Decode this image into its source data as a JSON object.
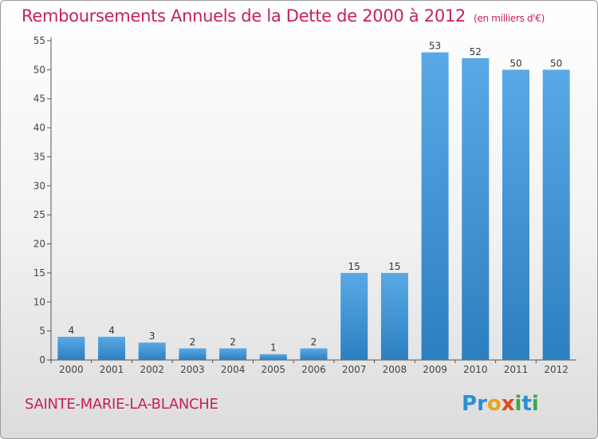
{
  "header": {
    "title": "Remboursements Annuels de la Dette de 2000 à 2012",
    "subtitle": "(en milliers d'€)"
  },
  "footer": {
    "place": "SAINTE-MARIE-LA-BLANCHE",
    "logo": "Proxiti"
  },
  "colors": {
    "bar_top": "#5aa9e6",
    "bar_bottom": "#2c7fc0",
    "title": "#c8205a"
  },
  "chart_data": {
    "type": "bar",
    "title": "Remboursements Annuels de la Dette de 2000 à 2012",
    "subtitle": "(en milliers d'€)",
    "categories": [
      "2000",
      "2001",
      "2002",
      "2003",
      "2004",
      "2005",
      "2006",
      "2007",
      "2008",
      "2009",
      "2010",
      "2011",
      "2012"
    ],
    "values": [
      4,
      4,
      3,
      2,
      2,
      1,
      2,
      15,
      15,
      53,
      52,
      50,
      50
    ],
    "ylim": [
      0,
      55
    ],
    "yticks": [
      0,
      5,
      10,
      15,
      20,
      25,
      30,
      35,
      40,
      45,
      50,
      55
    ],
    "xlabel": "",
    "ylabel": "",
    "grid": false,
    "data_labels": true
  }
}
